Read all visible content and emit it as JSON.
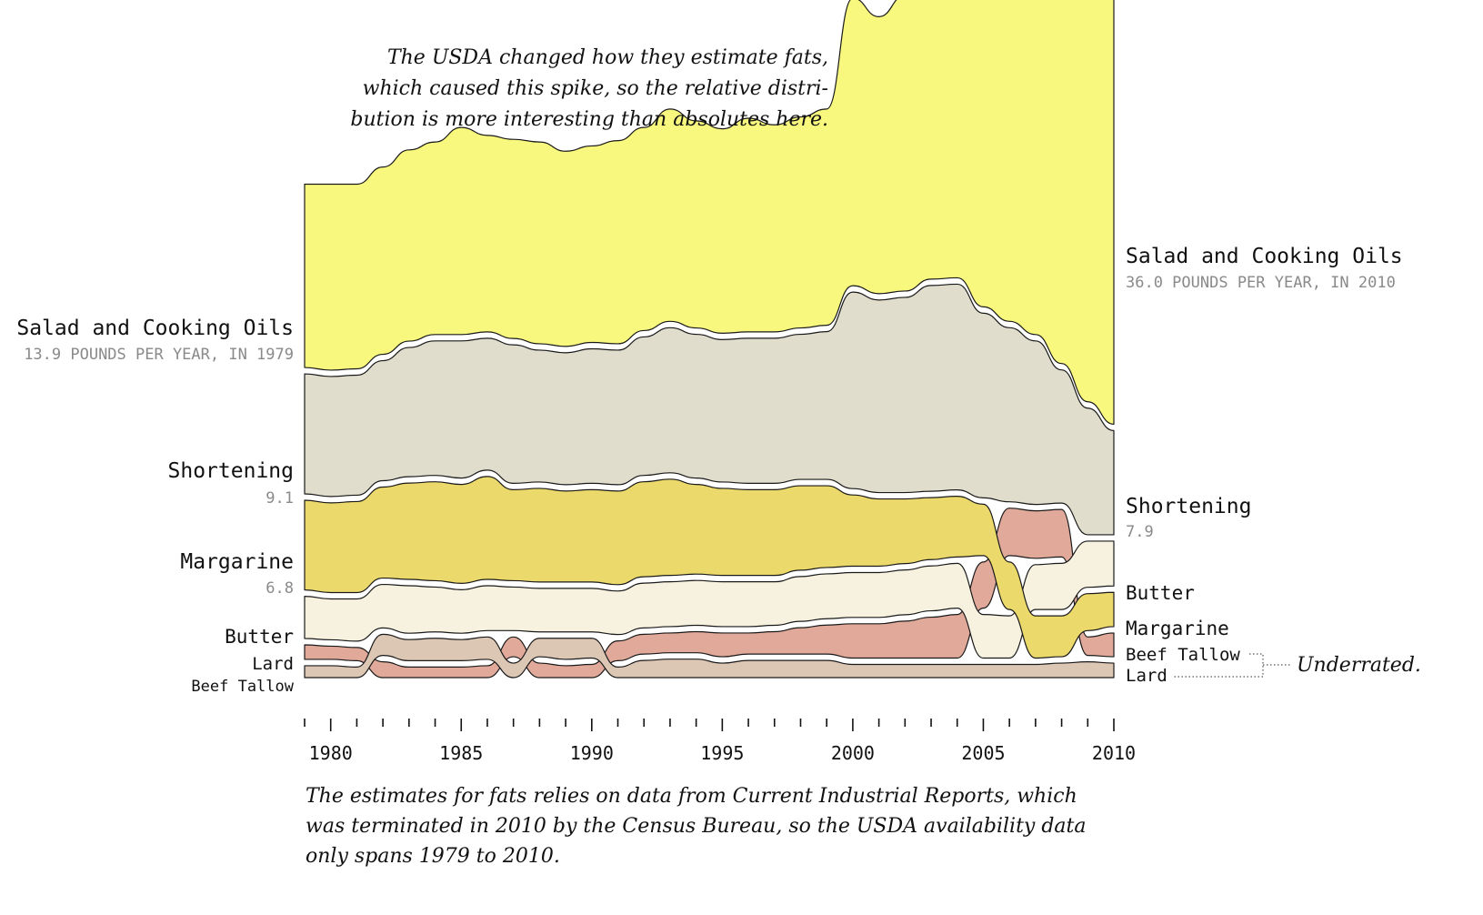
{
  "chart_data": {
    "type": "area",
    "subtype": "bump stream (ranked, stacked)",
    "x_label": "",
    "y_label": "",
    "years": [
      1979,
      1980,
      1981,
      1982,
      1983,
      1984,
      1985,
      1986,
      1987,
      1988,
      1989,
      1990,
      1991,
      1992,
      1993,
      1994,
      1995,
      1996,
      1997,
      1998,
      1999,
      2000,
      2001,
      2002,
      2003,
      2004,
      2005,
      2006,
      2007,
      2008,
      2009,
      2010
    ],
    "x_ticks": [
      1980,
      1985,
      1990,
      1995,
      2000,
      2005,
      2010
    ],
    "series": [
      {
        "name": "Salad and Cooking Oils",
        "color": "#f8f87e",
        "values": [
          13.9,
          14.1,
          14.0,
          14.2,
          14.5,
          14.6,
          15.7,
          14.9,
          15.1,
          15.3,
          14.8,
          14.9,
          15.4,
          15.4,
          16.1,
          15.7,
          15.5,
          16.2,
          15.7,
          16.0,
          16.4,
          21.8,
          21.0,
          22.4,
          22.7,
          23.0,
          25.1,
          26.7,
          28.8,
          31.8,
          31.9,
          36.0
        ],
        "label_left": "Salad and Cooking Oils",
        "sub_left": "13.9 POUNDS PER YEAR, IN 1979",
        "label_right": "Salad and Cooking Oils",
        "sub_right": "36.0 POUNDS PER YEAR, IN 2010"
      },
      {
        "name": "Shortening",
        "color": "#e0ddcc",
        "values": [
          9.1,
          9.1,
          9.1,
          9.1,
          9.8,
          10.2,
          10.4,
          10.0,
          10.5,
          10.0,
          10.0,
          10.2,
          10.2,
          10.5,
          11.0,
          10.9,
          10.8,
          11.0,
          11.0,
          11.0,
          11.2,
          14.9,
          14.6,
          14.8,
          15.6,
          15.6,
          14.0,
          13.2,
          12.4,
          10.1,
          9.6,
          7.9
        ],
        "label_left": "Shortening",
        "sub_left": "9.1",
        "label_right": "Shortening",
        "sub_right": "7.9"
      },
      {
        "name": "Margarine",
        "color": "#ecd96c",
        "values": [
          6.8,
          6.8,
          6.9,
          6.9,
          7.3,
          7.5,
          7.5,
          7.8,
          6.9,
          7.1,
          6.9,
          7.0,
          7.1,
          7.2,
          7.3,
          6.8,
          6.6,
          6.5,
          6.5,
          6.4,
          6.2,
          5.4,
          5.1,
          4.9,
          4.7,
          4.6,
          3.9,
          3.6,
          3.2,
          3.1,
          2.8,
          2.6
        ]
      },
      {
        "name": "Butter",
        "color": "#f7f2df",
        "values": [
          3.2,
          3.1,
          3.2,
          3.3,
          3.6,
          3.4,
          3.3,
          3.4,
          3.3,
          3.3,
          3.3,
          3.3,
          3.3,
          3.4,
          3.4,
          3.4,
          3.4,
          3.4,
          3.3,
          3.4,
          3.4,
          3.4,
          3.4,
          3.4,
          3.4,
          3.4,
          3.3,
          3.2,
          3.4,
          3.5,
          3.5,
          3.4
        ]
      },
      {
        "name": "Lard",
        "color": "#dcc6b4",
        "values": [
          0.9,
          0.9,
          0.8,
          1.6,
          1.6,
          1.7,
          1.6,
          1.7,
          1.1,
          1.4,
          1.6,
          1.5,
          0.8,
          1.3,
          1.4,
          1.4,
          1.1,
          1.3,
          1.3,
          1.3,
          1.3,
          1.0,
          1.0,
          1.0,
          1.0,
          1.0,
          1.0,
          1.0,
          1.0,
          1.1,
          1.2,
          1.1
        ]
      },
      {
        "name": "Beef Tallow",
        "color": "#e0a999",
        "values": [
          1.1,
          1.0,
          1.0,
          1.2,
          0.8,
          0.8,
          0.8,
          0.9,
          1.5,
          1.1,
          0.9,
          1.0,
          1.5,
          1.5,
          1.5,
          1.6,
          1.8,
          1.6,
          1.7,
          2.0,
          2.2,
          2.6,
          2.6,
          2.8,
          3.1,
          3.3,
          3.5,
          3.6,
          3.6,
          3.6,
          1.4,
          1.8
        ]
      }
    ],
    "end_labels_left": [
      "Salad and Cooking Oils",
      "Shortening",
      "Margarine",
      "Butter",
      "Lard",
      "Beef Tallow"
    ],
    "end_labels_right": [
      "Salad and Cooking Oils",
      "Shortening",
      "Butter",
      "Margarine",
      "Beef Tallow",
      "Lard"
    ],
    "annotations": [
      {
        "target": "2000 spike",
        "lines": [
          "The USDA changed how they estimate fats,",
          "which caused this spike, so the relative distri-",
          "bution is more interesting than absolutes here."
        ]
      },
      {
        "target": "Beef Tallow, Lard (right)",
        "text": "Underrated."
      }
    ],
    "footnote": [
      "The estimates for fats relies on data from Current Industrial Reports, which",
      "was terminated in 2010 by the Census Bureau, so the USDA availability data",
      "only spans 1979 to 2010."
    ]
  }
}
